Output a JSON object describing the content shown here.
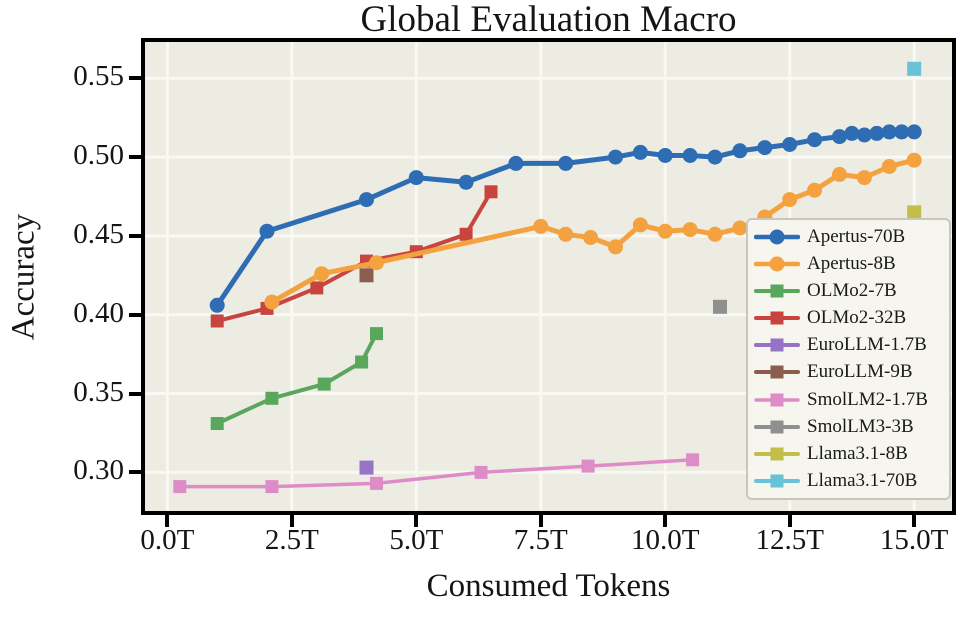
{
  "figure": {
    "title": "Global Evaluation Macro",
    "xlabel": "Consumed Tokens",
    "ylabel": "Accuracy"
  },
  "colors": {
    "background": "#ffffff",
    "plot_bg": "#edece3",
    "grid": "#f9f8f3",
    "frame": "#000000",
    "text": "#151515",
    "legend_bg": "#f6f5ee",
    "legend_border": "#c7c7c0"
  },
  "chart_data": {
    "type": "line",
    "title": "Global Evaluation Macro",
    "xlabel": "Consumed Tokens",
    "ylabel": "Accuracy",
    "x_unit": "trillions of tokens",
    "xlim": [
      -0.45,
      15.76
    ],
    "ylim": [
      0.2755,
      0.573
    ],
    "grid": true,
    "legend_position": "lower right",
    "x_ticks": [
      {
        "value": 0,
        "label": "0.0T"
      },
      {
        "value": 2.5,
        "label": "2.5T"
      },
      {
        "value": 5,
        "label": "5.0T"
      },
      {
        "value": 7.5,
        "label": "7.5T"
      },
      {
        "value": 10,
        "label": "10.0T"
      },
      {
        "value": 12.5,
        "label": "12.5T"
      },
      {
        "value": 15,
        "label": "15.0T"
      }
    ],
    "y_ticks": [
      {
        "value": 0.3,
        "label": "0.30"
      },
      {
        "value": 0.35,
        "label": "0.35"
      },
      {
        "value": 0.4,
        "label": "0.40"
      },
      {
        "value": 0.45,
        "label": "0.45"
      },
      {
        "value": 0.5,
        "label": "0.50"
      },
      {
        "value": 0.55,
        "label": "0.55"
      }
    ],
    "series": [
      {
        "name": "Apertus-70B",
        "color": "#2e6db4",
        "marker": "circle",
        "lw": 5,
        "ms": 15,
        "data": [
          [
            1,
            0.406
          ],
          [
            2,
            0.453
          ],
          [
            4,
            0.473
          ],
          [
            5,
            0.487
          ],
          [
            6,
            0.484
          ],
          [
            7,
            0.496
          ],
          [
            8,
            0.496
          ],
          [
            9,
            0.5
          ],
          [
            9.5,
            0.503
          ],
          [
            10,
            0.501
          ],
          [
            10.5,
            0.501
          ],
          [
            11,
            0.5
          ],
          [
            11.5,
            0.504
          ],
          [
            12,
            0.506
          ],
          [
            12.5,
            0.508
          ],
          [
            13,
            0.511
          ],
          [
            13.5,
            0.513
          ],
          [
            13.75,
            0.515
          ],
          [
            14,
            0.514
          ],
          [
            14.25,
            0.515
          ],
          [
            14.5,
            0.516
          ],
          [
            14.75,
            0.516
          ],
          [
            15,
            0.516
          ]
        ]
      },
      {
        "name": "Apertus-8B",
        "color": "#f3a23f",
        "marker": "circle",
        "lw": 5,
        "ms": 15,
        "data": [
          [
            2.1,
            0.408
          ],
          [
            3.1,
            0.426
          ],
          [
            4.2,
            0.433
          ],
          [
            7.5,
            0.456
          ],
          [
            8,
            0.451
          ],
          [
            8.5,
            0.449
          ],
          [
            9,
            0.443
          ],
          [
            9.5,
            0.457
          ],
          [
            10,
            0.453
          ],
          [
            10.5,
            0.454
          ],
          [
            11,
            0.451
          ],
          [
            11.5,
            0.455
          ],
          [
            12,
            0.462
          ],
          [
            12.5,
            0.473
          ],
          [
            13,
            0.479
          ],
          [
            13.5,
            0.489
          ],
          [
            14,
            0.487
          ],
          [
            14.5,
            0.494
          ],
          [
            15,
            0.498
          ]
        ]
      },
      {
        "name": "OLMo2-7B",
        "color": "#58a75c",
        "marker": "square",
        "lw": 4,
        "ms": 13,
        "data": [
          [
            1,
            0.331
          ],
          [
            2.1,
            0.347
          ],
          [
            3.15,
            0.356
          ],
          [
            3.9,
            0.37
          ],
          [
            4.2,
            0.388
          ]
        ]
      },
      {
        "name": "OLMo2-32B",
        "color": "#c8453f",
        "marker": "square",
        "lw": 4,
        "ms": 13,
        "data": [
          [
            1,
            0.396
          ],
          [
            2,
            0.404
          ],
          [
            3,
            0.417
          ],
          [
            4,
            0.434
          ],
          [
            5,
            0.44
          ],
          [
            6,
            0.451
          ],
          [
            6.5,
            0.478
          ]
        ]
      },
      {
        "name": "EuroLLM-1.7B",
        "color": "#9673c5",
        "marker": "square",
        "lw": 4,
        "ms": 14,
        "data": [
          [
            4,
            0.303
          ]
        ]
      },
      {
        "name": "EuroLLM-9B",
        "color": "#8a5d4f",
        "marker": "square",
        "lw": 4,
        "ms": 14,
        "data": [
          [
            4,
            0.425
          ]
        ]
      },
      {
        "name": "SmolLM2-1.7B",
        "color": "#dd8cc7",
        "marker": "square",
        "lw": 3.5,
        "ms": 13,
        "data": [
          [
            0.25,
            0.291
          ],
          [
            2.1,
            0.291
          ],
          [
            4.2,
            0.293
          ],
          [
            6.3,
            0.3
          ],
          [
            8.45,
            0.304
          ],
          [
            10.55,
            0.308
          ]
        ]
      },
      {
        "name": "SmolLM3-3B",
        "color": "#8f8f8f",
        "marker": "square",
        "lw": 4,
        "ms": 14,
        "data": [
          [
            11.1,
            0.405
          ]
        ]
      },
      {
        "name": "Llama3.1-8B",
        "color": "#c3bd4b",
        "marker": "square",
        "lw": 4,
        "ms": 14,
        "data": [
          [
            15,
            0.465
          ]
        ]
      },
      {
        "name": "Llama3.1-70B",
        "color": "#68c3d7",
        "marker": "square",
        "lw": 4,
        "ms": 14,
        "data": [
          [
            15,
            0.556
          ]
        ]
      }
    ]
  }
}
